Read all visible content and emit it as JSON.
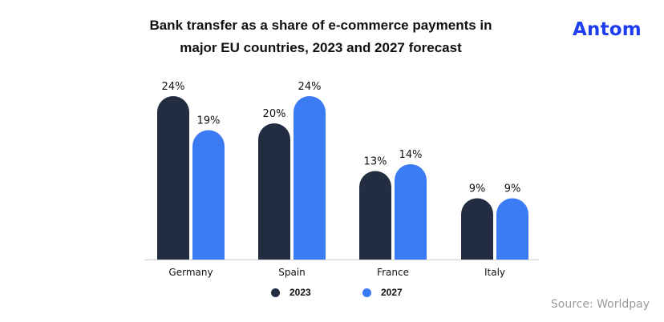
{
  "title_line1": "Bank transfer as a share of e-commerce payments in",
  "title_line2": "major EU countries, 2023 and 2027 forecast",
  "brand": "Antom",
  "source": "Source: Worldpay",
  "colors": {
    "series_2023": "#232d42",
    "series_2027": "#3b7cf5",
    "brand": "#1f3df0"
  },
  "chart_data": {
    "type": "bar",
    "categories": [
      "Germany",
      "Spain",
      "France",
      "Italy"
    ],
    "series": [
      {
        "name": "2023",
        "values": [
          24,
          20,
          13,
          9
        ],
        "labels": [
          "24%",
          "20%",
          "13%",
          "9%"
        ]
      },
      {
        "name": "2027",
        "values": [
          19,
          24,
          14,
          9
        ],
        "labels": [
          "19%",
          "24%",
          "14%",
          "9%"
        ]
      }
    ],
    "ylim": [
      0,
      24
    ],
    "grid": false,
    "legend": "bottom"
  }
}
